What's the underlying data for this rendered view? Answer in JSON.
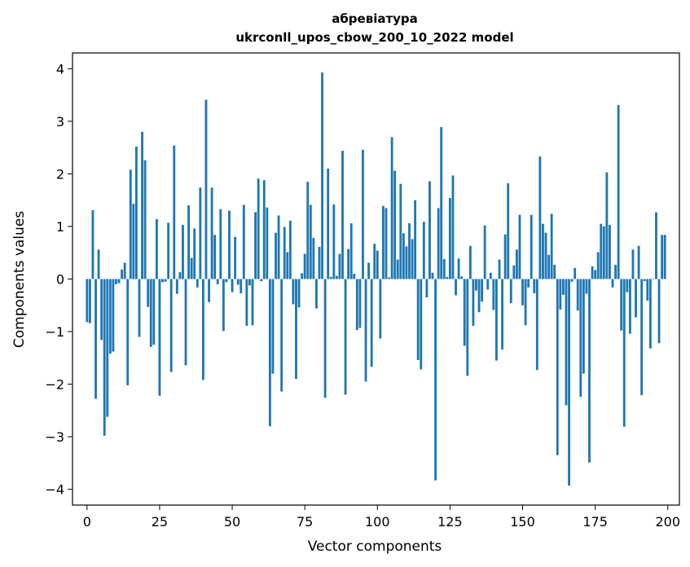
{
  "chart_data": {
    "type": "bar",
    "title": "абревіатура",
    "subtitle": "ukrconll_upos_cbow_200_10_2022 model",
    "xlabel": "Vector components",
    "ylabel": "Components values",
    "xlim": [
      -5,
      204
    ],
    "ylim": [
      -4.3,
      4.3
    ],
    "xticks": [
      0,
      25,
      50,
      75,
      100,
      125,
      150,
      175,
      200
    ],
    "yticks": [
      -4,
      -3,
      -2,
      -1,
      0,
      1,
      2,
      3,
      4
    ],
    "grid": false,
    "bar_color": "#1f77b4",
    "values": [
      -0.82,
      -0.84,
      1.31,
      -2.28,
      0.56,
      -1.16,
      -2.98,
      -2.62,
      -1.42,
      -1.38,
      -0.1,
      -0.08,
      0.18,
      0.31,
      -2.02,
      2.08,
      1.43,
      2.52,
      -1.1,
      2.8,
      2.26,
      -0.53,
      -1.29,
      -1.25,
      1.14,
      -2.22,
      -0.06,
      -0.05,
      1.07,
      -1.77,
      2.54,
      -0.28,
      0.13,
      1.03,
      -1.64,
      1.4,
      0.4,
      0.96,
      -0.16,
      1.74,
      -1.92,
      3.41,
      -0.44,
      1.74,
      0.84,
      -0.1,
      1.33,
      -0.99,
      -0.06,
      1.3,
      -0.25,
      0.8,
      -0.11,
      -0.27,
      1.41,
      -0.89,
      -0.12,
      -0.88,
      1.27,
      1.91,
      -0.04,
      1.88,
      1.36,
      -2.8,
      -1.8,
      0.88,
      1.21,
      -2.14,
      0.99,
      0.51,
      1.11,
      -0.48,
      -1.9,
      -0.54,
      0.11,
      0.48,
      1.85,
      1.41,
      0.78,
      -0.56,
      0.61,
      3.93,
      -2.26,
      2.1,
      0.04,
      1.42,
      0.06,
      0.48,
      2.44,
      -2.2,
      0.57,
      1.06,
      0.1,
      -0.97,
      -0.93,
      2.46,
      -1.95,
      0.31,
      -1.67,
      0.67,
      0.54,
      -1.13,
      1.39,
      1.35,
      0.03,
      2.7,
      2.06,
      0.37,
      1.81,
      0.87,
      0.62,
      1.06,
      0.76,
      1.5,
      -1.54,
      -1.72,
      1.09,
      -0.35,
      1.86,
      0.12,
      -3.83,
      1.35,
      2.89,
      0.38,
      0.04,
      1.54,
      1.97,
      -0.31,
      0.39,
      0.05,
      -1.27,
      -1.84,
      0.63,
      -0.89,
      -0.22,
      -0.63,
      -0.43,
      1.02,
      -0.2,
      0.12,
      -0.59,
      -1.55,
      0.37,
      -1.34,
      0.85,
      1.82,
      -0.46,
      0.26,
      0.56,
      1.22,
      -0.5,
      -0.88,
      -0.16,
      1.22,
      -0.27,
      -1.73,
      2.33,
      1.05,
      0.88,
      0.46,
      1.24,
      0.27,
      -3.35,
      -0.58,
      -0.3,
      -2.4,
      -3.93,
      -0.05,
      0.21,
      -0.6,
      -2.24,
      -1.8,
      -0.28,
      -3.49,
      0.24,
      0.17,
      0.51,
      1.05,
      1.0,
      2.03,
      1.03,
      -0.16,
      0.27,
      3.31,
      -0.98,
      -2.81,
      -0.25,
      -1.04,
      0.56,
      -0.73,
      0.63,
      -2.21,
      -0.04,
      -0.41,
      -1.32,
      0.01,
      1.27,
      -1.22,
      0.84,
      0.84
    ]
  }
}
